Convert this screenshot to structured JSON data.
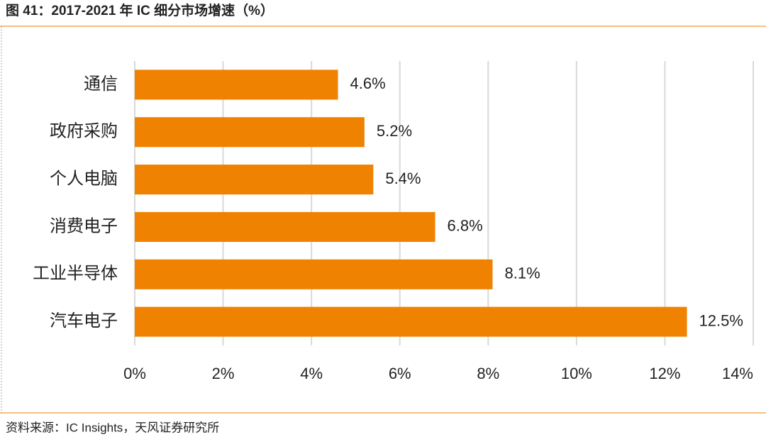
{
  "header": {
    "title": "图 41：2017-2021 年 IC 细分市场增速（%）"
  },
  "chart_data": {
    "type": "hbar",
    "categories": [
      "通信",
      "政府采购",
      "个人电脑",
      "消费电子",
      "工业半导体",
      "汽车电子"
    ],
    "values": [
      4.6,
      5.2,
      5.4,
      6.8,
      8.1,
      12.5
    ],
    "value_labels": [
      "4.6%",
      "5.2%",
      "5.4%",
      "6.8%",
      "8.1%",
      "12.5%"
    ],
    "color": "#ef8200",
    "xlim": [
      0,
      14
    ],
    "xticks": [
      {
        "value": 0,
        "label": "0%"
      },
      {
        "value": 2,
        "label": "2%"
      },
      {
        "value": 4,
        "label": "4%"
      },
      {
        "value": 6,
        "label": "6%"
      },
      {
        "value": 8,
        "label": "8%"
      },
      {
        "value": 10,
        "label": "10%"
      },
      {
        "value": 12,
        "label": "12%"
      },
      {
        "value": 14,
        "label": "14%"
      }
    ],
    "grid": true
  },
  "footer": {
    "source": "资料来源：IC Insights，天风证券研究所"
  }
}
